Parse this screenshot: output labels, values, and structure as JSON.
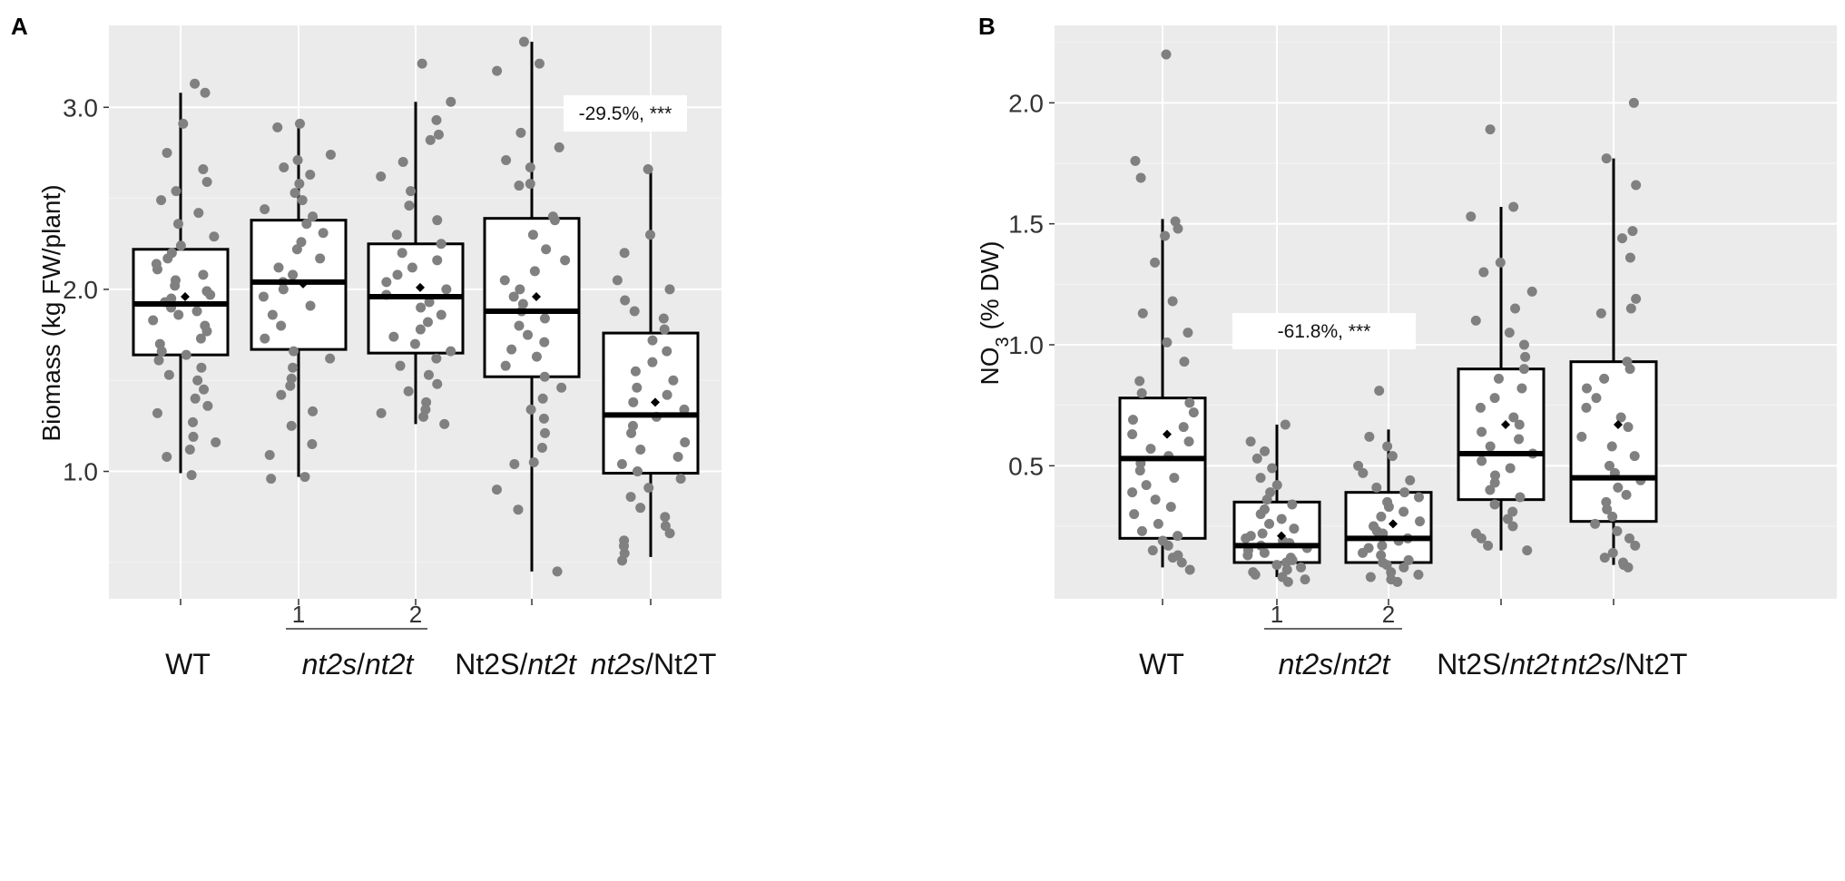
{
  "colors": {
    "panel_bg": "#ebebeb",
    "grid_major": "#ffffff",
    "grid_minor": "#f4f4f4",
    "point": "#808080",
    "box_fill": "#ffffff",
    "box_stroke": "#000000",
    "mean_marker": "#000000",
    "annotation_bg": "#ffffff"
  },
  "chart_data": [
    {
      "panel": "A",
      "type": "boxplot",
      "ylabel": "Biomass (kg FW/plant)",
      "ylim": [
        0.3,
        3.45
      ],
      "yticks": [
        1.0,
        2.0,
        3.0
      ],
      "ytick_labels": [
        "1.0",
        "2.0",
        "3.0"
      ],
      "categories": [
        "WT",
        "1",
        "2",
        "Nt2S/nt2t",
        "nt2s/Nt2T"
      ],
      "line_labels": [
        "",
        "1",
        "2",
        "",
        ""
      ],
      "group_labels": [
        {
          "plain": "WT",
          "italic": "",
          "suffix": ""
        },
        {
          "plain": "",
          "italic": "nt2s",
          "suffix": "/",
          "italic2": "nt2t"
        },
        {
          "plain": "Nt2S/",
          "italic": "nt2t",
          "suffix": ""
        },
        {
          "plain": "",
          "italic": "nt2s",
          "suffix": "/Nt2T"
        }
      ],
      "boxes": [
        {
          "name": "WT",
          "whisker_low": 0.99,
          "q1": 1.64,
          "median": 1.92,
          "q3": 2.22,
          "whisker_high": 3.08,
          "mean": 1.96
        },
        {
          "name": "nt2s/nt2t 1",
          "whisker_low": 0.97,
          "q1": 1.67,
          "median": 2.04,
          "q3": 2.38,
          "whisker_high": 2.91,
          "mean": 2.03
        },
        {
          "name": "nt2s/nt2t 2",
          "whisker_low": 1.26,
          "q1": 1.65,
          "median": 1.96,
          "q3": 2.25,
          "whisker_high": 3.03,
          "mean": 2.01
        },
        {
          "name": "Nt2S/nt2t",
          "whisker_low": 0.45,
          "q1": 1.52,
          "median": 1.88,
          "q3": 2.39,
          "whisker_high": 3.36,
          "mean": 1.96
        },
        {
          "name": "nt2s/Nt2T",
          "whisker_low": 0.53,
          "q1": 0.99,
          "median": 1.31,
          "q3": 1.76,
          "whisker_high": 2.66,
          "mean": 1.38
        }
      ],
      "points": [
        [
          0.98,
          1.08,
          1.12,
          1.16,
          1.19,
          1.27,
          1.32,
          1.36,
          1.4,
          1.45,
          1.5,
          1.53,
          1.57,
          1.61,
          1.64,
          1.66,
          1.7,
          1.73,
          1.77,
          1.8,
          1.83,
          1.86,
          1.88,
          1.9,
          1.93,
          1.95,
          1.97,
          1.99,
          2.02,
          2.05,
          2.08,
          2.11,
          2.14,
          2.17,
          2.2,
          2.24,
          2.29,
          2.36,
          2.42,
          2.49,
          2.54,
          2.59,
          2.66,
          2.75,
          2.91,
          3.08,
          3.13
        ],
        [
          0.96,
          0.97,
          1.09,
          1.15,
          1.25,
          1.33,
          1.42,
          1.47,
          1.51,
          1.57,
          1.62,
          1.66,
          1.73,
          1.8,
          1.86,
          1.91,
          1.96,
          2.0,
          2.04,
          2.08,
          2.12,
          2.17,
          2.22,
          2.26,
          2.31,
          2.36,
          2.4,
          2.44,
          2.49,
          2.53,
          2.58,
          2.63,
          2.67,
          2.71,
          2.74,
          2.89,
          2.91
        ],
        [
          1.26,
          1.3,
          1.32,
          1.34,
          1.38,
          1.44,
          1.48,
          1.53,
          1.58,
          1.62,
          1.66,
          1.7,
          1.74,
          1.78,
          1.82,
          1.86,
          1.9,
          1.93,
          1.97,
          2.0,
          2.04,
          2.08,
          2.12,
          2.16,
          2.2,
          2.25,
          2.3,
          2.38,
          2.46,
          2.54,
          2.62,
          2.7,
          2.82,
          2.85,
          2.93,
          3.03,
          3.24
        ],
        [
          0.45,
          0.79,
          0.9,
          1.04,
          1.05,
          1.13,
          1.21,
          1.29,
          1.34,
          1.4,
          1.46,
          1.52,
          1.58,
          1.63,
          1.67,
          1.71,
          1.75,
          1.8,
          1.84,
          1.88,
          1.92,
          1.96,
          2.0,
          2.05,
          2.1,
          2.16,
          2.22,
          2.3,
          2.38,
          2.4,
          2.57,
          2.58,
          2.67,
          2.71,
          2.78,
          2.86,
          3.2,
          3.24,
          3.36
        ],
        [
          0.51,
          0.55,
          0.59,
          0.62,
          0.66,
          0.7,
          0.75,
          0.8,
          0.86,
          0.91,
          0.96,
          1.0,
          1.04,
          1.08,
          1.12,
          1.16,
          1.21,
          1.25,
          1.3,
          1.34,
          1.38,
          1.42,
          1.46,
          1.5,
          1.55,
          1.6,
          1.66,
          1.72,
          1.78,
          1.84,
          1.88,
          1.94,
          2.0,
          2.05,
          2.2,
          2.3,
          2.66
        ]
      ],
      "annotation": {
        "text": "-29.5%, ***",
        "x_index": 4,
        "y": 3.0
      }
    },
    {
      "panel": "B",
      "type": "boxplot",
      "ylabel_main": "NO",
      "ylabel_sub": "3",
      "ylabel_rest": " (% DW)",
      "ylim": [
        -0.05,
        2.32
      ],
      "yticks": [
        0.5,
        1.0,
        1.5,
        2.0
      ],
      "ytick_labels": [
        "0.5",
        "1.0",
        "1.5",
        "2.0"
      ],
      "categories": [
        "WT",
        "1",
        "2",
        "Nt2S/nt2t",
        "nt2s/Nt2T"
      ],
      "line_labels": [
        "",
        "1",
        "2",
        "",
        ""
      ],
      "group_labels": [
        {
          "plain": "WT",
          "italic": "",
          "suffix": ""
        },
        {
          "plain": "",
          "italic": "nt2s",
          "suffix": "/",
          "italic2": "nt2t"
        },
        {
          "plain": "Nt2S/",
          "italic": "nt2t",
          "suffix": ""
        },
        {
          "plain": "",
          "italic": "nt2s",
          "suffix": "/Nt2T"
        }
      ],
      "boxes": [
        {
          "name": "WT",
          "whisker_low": 0.08,
          "q1": 0.2,
          "median": 0.53,
          "q3": 0.78,
          "whisker_high": 1.52,
          "mean": 0.63
        },
        {
          "name": "nt2s/nt2t 1",
          "whisker_low": 0.04,
          "q1": 0.1,
          "median": 0.17,
          "q3": 0.35,
          "whisker_high": 0.67,
          "mean": 0.21
        },
        {
          "name": "nt2s/nt2t 2",
          "whisker_low": 0.03,
          "q1": 0.1,
          "median": 0.2,
          "q3": 0.39,
          "whisker_high": 0.65,
          "mean": 0.26
        },
        {
          "name": "Nt2S/nt2t",
          "whisker_low": 0.15,
          "q1": 0.36,
          "median": 0.55,
          "q3": 0.9,
          "whisker_high": 1.57,
          "mean": 0.67
        },
        {
          "name": "nt2s/Nt2T",
          "whisker_low": 0.09,
          "q1": 0.27,
          "median": 0.45,
          "q3": 0.93,
          "whisker_high": 1.77,
          "mean": 0.67
        }
      ],
      "points": [
        [
          0.07,
          0.1,
          0.12,
          0.13,
          0.15,
          0.17,
          0.19,
          0.21,
          0.23,
          0.26,
          0.3,
          0.33,
          0.36,
          0.39,
          0.42,
          0.45,
          0.48,
          0.51,
          0.54,
          0.57,
          0.6,
          0.63,
          0.66,
          0.69,
          0.72,
          0.76,
          0.8,
          0.85,
          0.93,
          1.01,
          1.05,
          1.13,
          1.18,
          1.34,
          1.45,
          1.48,
          1.51,
          1.69,
          1.76,
          2.2
        ],
        [
          0.02,
          0.03,
          0.04,
          0.05,
          0.06,
          0.07,
          0.08,
          0.09,
          0.1,
          0.11,
          0.12,
          0.13,
          0.14,
          0.15,
          0.16,
          0.17,
          0.18,
          0.19,
          0.2,
          0.21,
          0.22,
          0.24,
          0.26,
          0.28,
          0.3,
          0.32,
          0.34,
          0.36,
          0.39,
          0.42,
          0.45,
          0.49,
          0.53,
          0.56,
          0.6,
          0.67
        ],
        [
          0.02,
          0.03,
          0.04,
          0.05,
          0.06,
          0.08,
          0.09,
          0.1,
          0.11,
          0.13,
          0.14,
          0.16,
          0.17,
          0.19,
          0.2,
          0.22,
          0.23,
          0.25,
          0.27,
          0.29,
          0.31,
          0.33,
          0.35,
          0.37,
          0.39,
          0.41,
          0.44,
          0.47,
          0.5,
          0.54,
          0.58,
          0.62,
          0.81
        ],
        [
          0.15,
          0.17,
          0.2,
          0.22,
          0.25,
          0.28,
          0.31,
          0.34,
          0.37,
          0.4,
          0.43,
          0.46,
          0.49,
          0.52,
          0.55,
          0.58,
          0.61,
          0.64,
          0.67,
          0.7,
          0.74,
          0.78,
          0.82,
          0.86,
          0.9,
          0.95,
          1.0,
          1.05,
          1.1,
          1.15,
          1.22,
          1.3,
          1.34,
          1.53,
          1.57,
          1.89
        ],
        [
          0.08,
          0.09,
          0.1,
          0.12,
          0.14,
          0.17,
          0.2,
          0.23,
          0.26,
          0.29,
          0.32,
          0.35,
          0.38,
          0.41,
          0.44,
          0.47,
          0.5,
          0.54,
          0.58,
          0.62,
          0.66,
          0.7,
          0.74,
          0.78,
          0.82,
          0.86,
          0.9,
          0.93,
          1.13,
          1.15,
          1.19,
          1.36,
          1.44,
          1.47,
          1.66,
          1.77,
          2.0
        ]
      ],
      "annotation": {
        "text": "-61.8%, ***",
        "x_index": 1.5,
        "y": 1.0
      }
    }
  ]
}
